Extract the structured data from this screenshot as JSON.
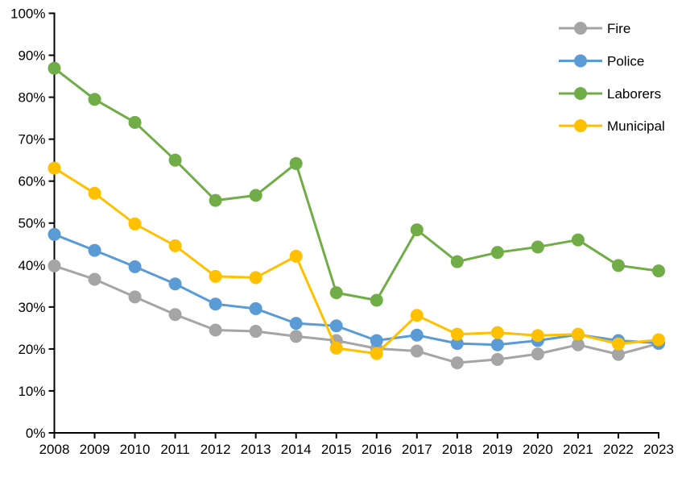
{
  "chart_data": {
    "type": "line",
    "title": "",
    "xlabel": "",
    "ylabel": "",
    "x": [
      2008,
      2009,
      2010,
      2011,
      2012,
      2013,
      2014,
      2015,
      2016,
      2017,
      2018,
      2019,
      2020,
      2021,
      2022,
      2023
    ],
    "series": [
      {
        "name": "Fire",
        "color": "#A5A5A5",
        "values": [
          39.8,
          36.6,
          32.4,
          28.2,
          24.5,
          24.2,
          23.0,
          22.0,
          20.1,
          19.5,
          16.7,
          17.5,
          18.8,
          21.0,
          18.7,
          21.3
        ]
      },
      {
        "name": "Police",
        "color": "#5B9BD5",
        "values": [
          47.3,
          43.5,
          39.6,
          35.5,
          30.7,
          29.6,
          26.1,
          25.5,
          22.0,
          23.3,
          21.3,
          21.0,
          22.0,
          23.4,
          22.0,
          21.4
        ]
      },
      {
        "name": "Laborers",
        "color": "#70AD47",
        "values": [
          86.9,
          79.5,
          74.0,
          65.0,
          55.4,
          56.6,
          64.2,
          33.4,
          31.6,
          48.4,
          40.8,
          43.0,
          44.3,
          46.0,
          39.9,
          38.6
        ]
      },
      {
        "name": "Municipal",
        "color": "#FFC000",
        "values": [
          63.1,
          57.1,
          49.8,
          44.6,
          37.3,
          37.0,
          42.1,
          20.2,
          18.9,
          28.0,
          23.5,
          23.9,
          23.2,
          23.5,
          21.2,
          22.2
        ]
      }
    ],
    "ylim": [
      0,
      100
    ],
    "ytick_step": 10,
    "ytick_suffix": "%",
    "grid": false,
    "legend_position": "top-right",
    "legend_entries": [
      "Fire",
      "Police",
      "Laborers",
      "Municipal"
    ],
    "axis_color": "#000000",
    "background_color": "#FFFFFF"
  }
}
